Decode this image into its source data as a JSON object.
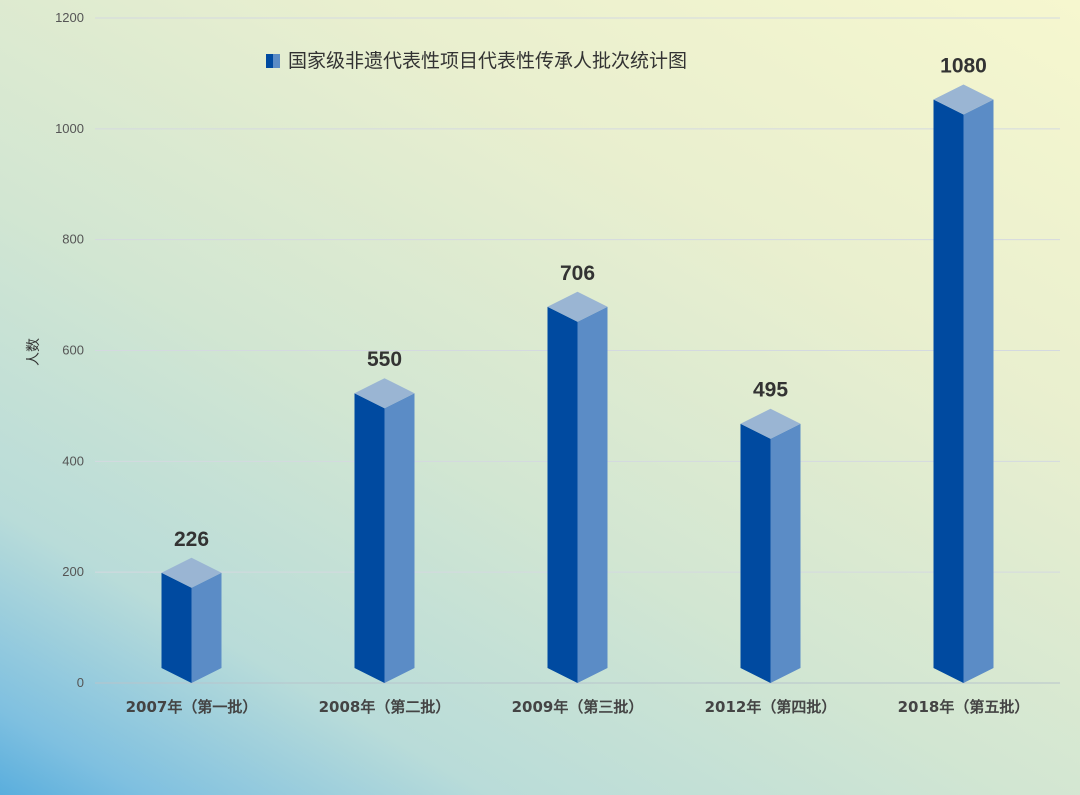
{
  "chart_data": {
    "type": "bar",
    "title": "国家级非遗代表性项目代表性传承人批次统计图",
    "ylabel": "人数",
    "xlabel": "",
    "categories": [
      "2007年（第一批）",
      "2008年（第二批）",
      "2009年（第三批）",
      "2012年（第四批）",
      "2018年（第五批）"
    ],
    "values": [
      226,
      550,
      706,
      495,
      1080
    ],
    "ylim": [
      0,
      1200
    ],
    "yticks": [
      0,
      200,
      400,
      600,
      800,
      1000,
      1200
    ],
    "grid": true,
    "legend": "top-center",
    "colors": {
      "front": "#004aa0",
      "side": "#5b8cc6",
      "top": "#9ab5d3"
    }
  }
}
